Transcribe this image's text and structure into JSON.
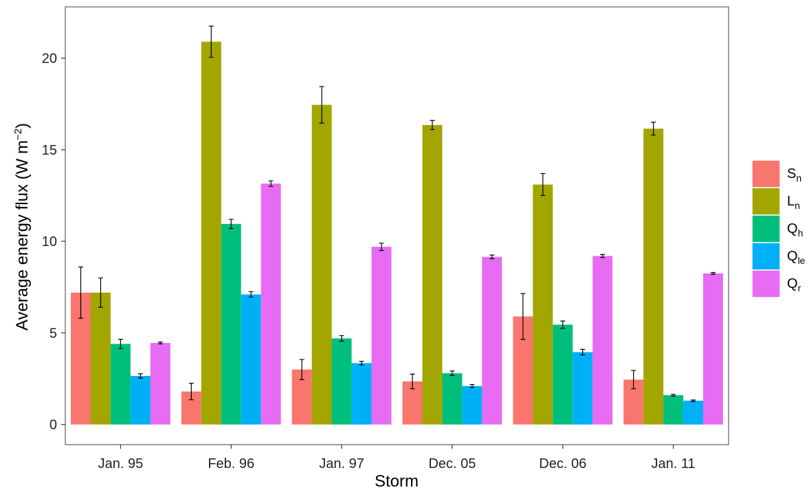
{
  "chart_data": {
    "type": "bar",
    "xlabel": "Storm",
    "ylabel": "Average energy flux (W m",
    "ylabel_sup": "−2",
    "ylabel_close": ")",
    "ylim": [
      -1.1,
      22.8
    ],
    "yticks": [
      0,
      5,
      10,
      15,
      20
    ],
    "grid": false,
    "legend_position": "right",
    "categories": [
      "Jan. 95",
      "Feb. 96",
      "Jan. 97",
      "Dec. 05",
      "Dec. 06",
      "Jan. 11"
    ],
    "series": [
      {
        "name": "S",
        "sub": "n",
        "color": "#F8766D",
        "values": [
          7.2,
          1.8,
          3.0,
          2.35,
          5.9,
          2.45
        ],
        "errors": [
          1.4,
          0.45,
          0.55,
          0.4,
          1.25,
          0.5
        ]
      },
      {
        "name": "L",
        "sub": "n",
        "color": "#A3A500",
        "values": [
          7.2,
          20.9,
          17.45,
          16.35,
          13.1,
          16.15
        ],
        "errors": [
          0.8,
          0.85,
          1.0,
          0.25,
          0.6,
          0.35
        ]
      },
      {
        "name": "Q",
        "sub": "h",
        "color": "#00BF7D",
        "values": [
          4.4,
          10.95,
          4.7,
          2.8,
          5.45,
          1.6
        ],
        "errors": [
          0.25,
          0.25,
          0.15,
          0.12,
          0.2,
          0.05
        ]
      },
      {
        "name": "Q",
        "sub": "le",
        "color": "#00B0F6",
        "values": [
          2.65,
          7.1,
          3.35,
          2.1,
          3.95,
          1.3
        ],
        "errors": [
          0.12,
          0.15,
          0.1,
          0.08,
          0.15,
          0.04
        ]
      },
      {
        "name": "Q",
        "sub": "r",
        "color": "#E76BF3",
        "values": [
          4.45,
          13.15,
          9.7,
          9.15,
          9.2,
          8.25
        ],
        "errors": [
          0.05,
          0.15,
          0.2,
          0.1,
          0.08,
          0.05
        ]
      }
    ]
  }
}
